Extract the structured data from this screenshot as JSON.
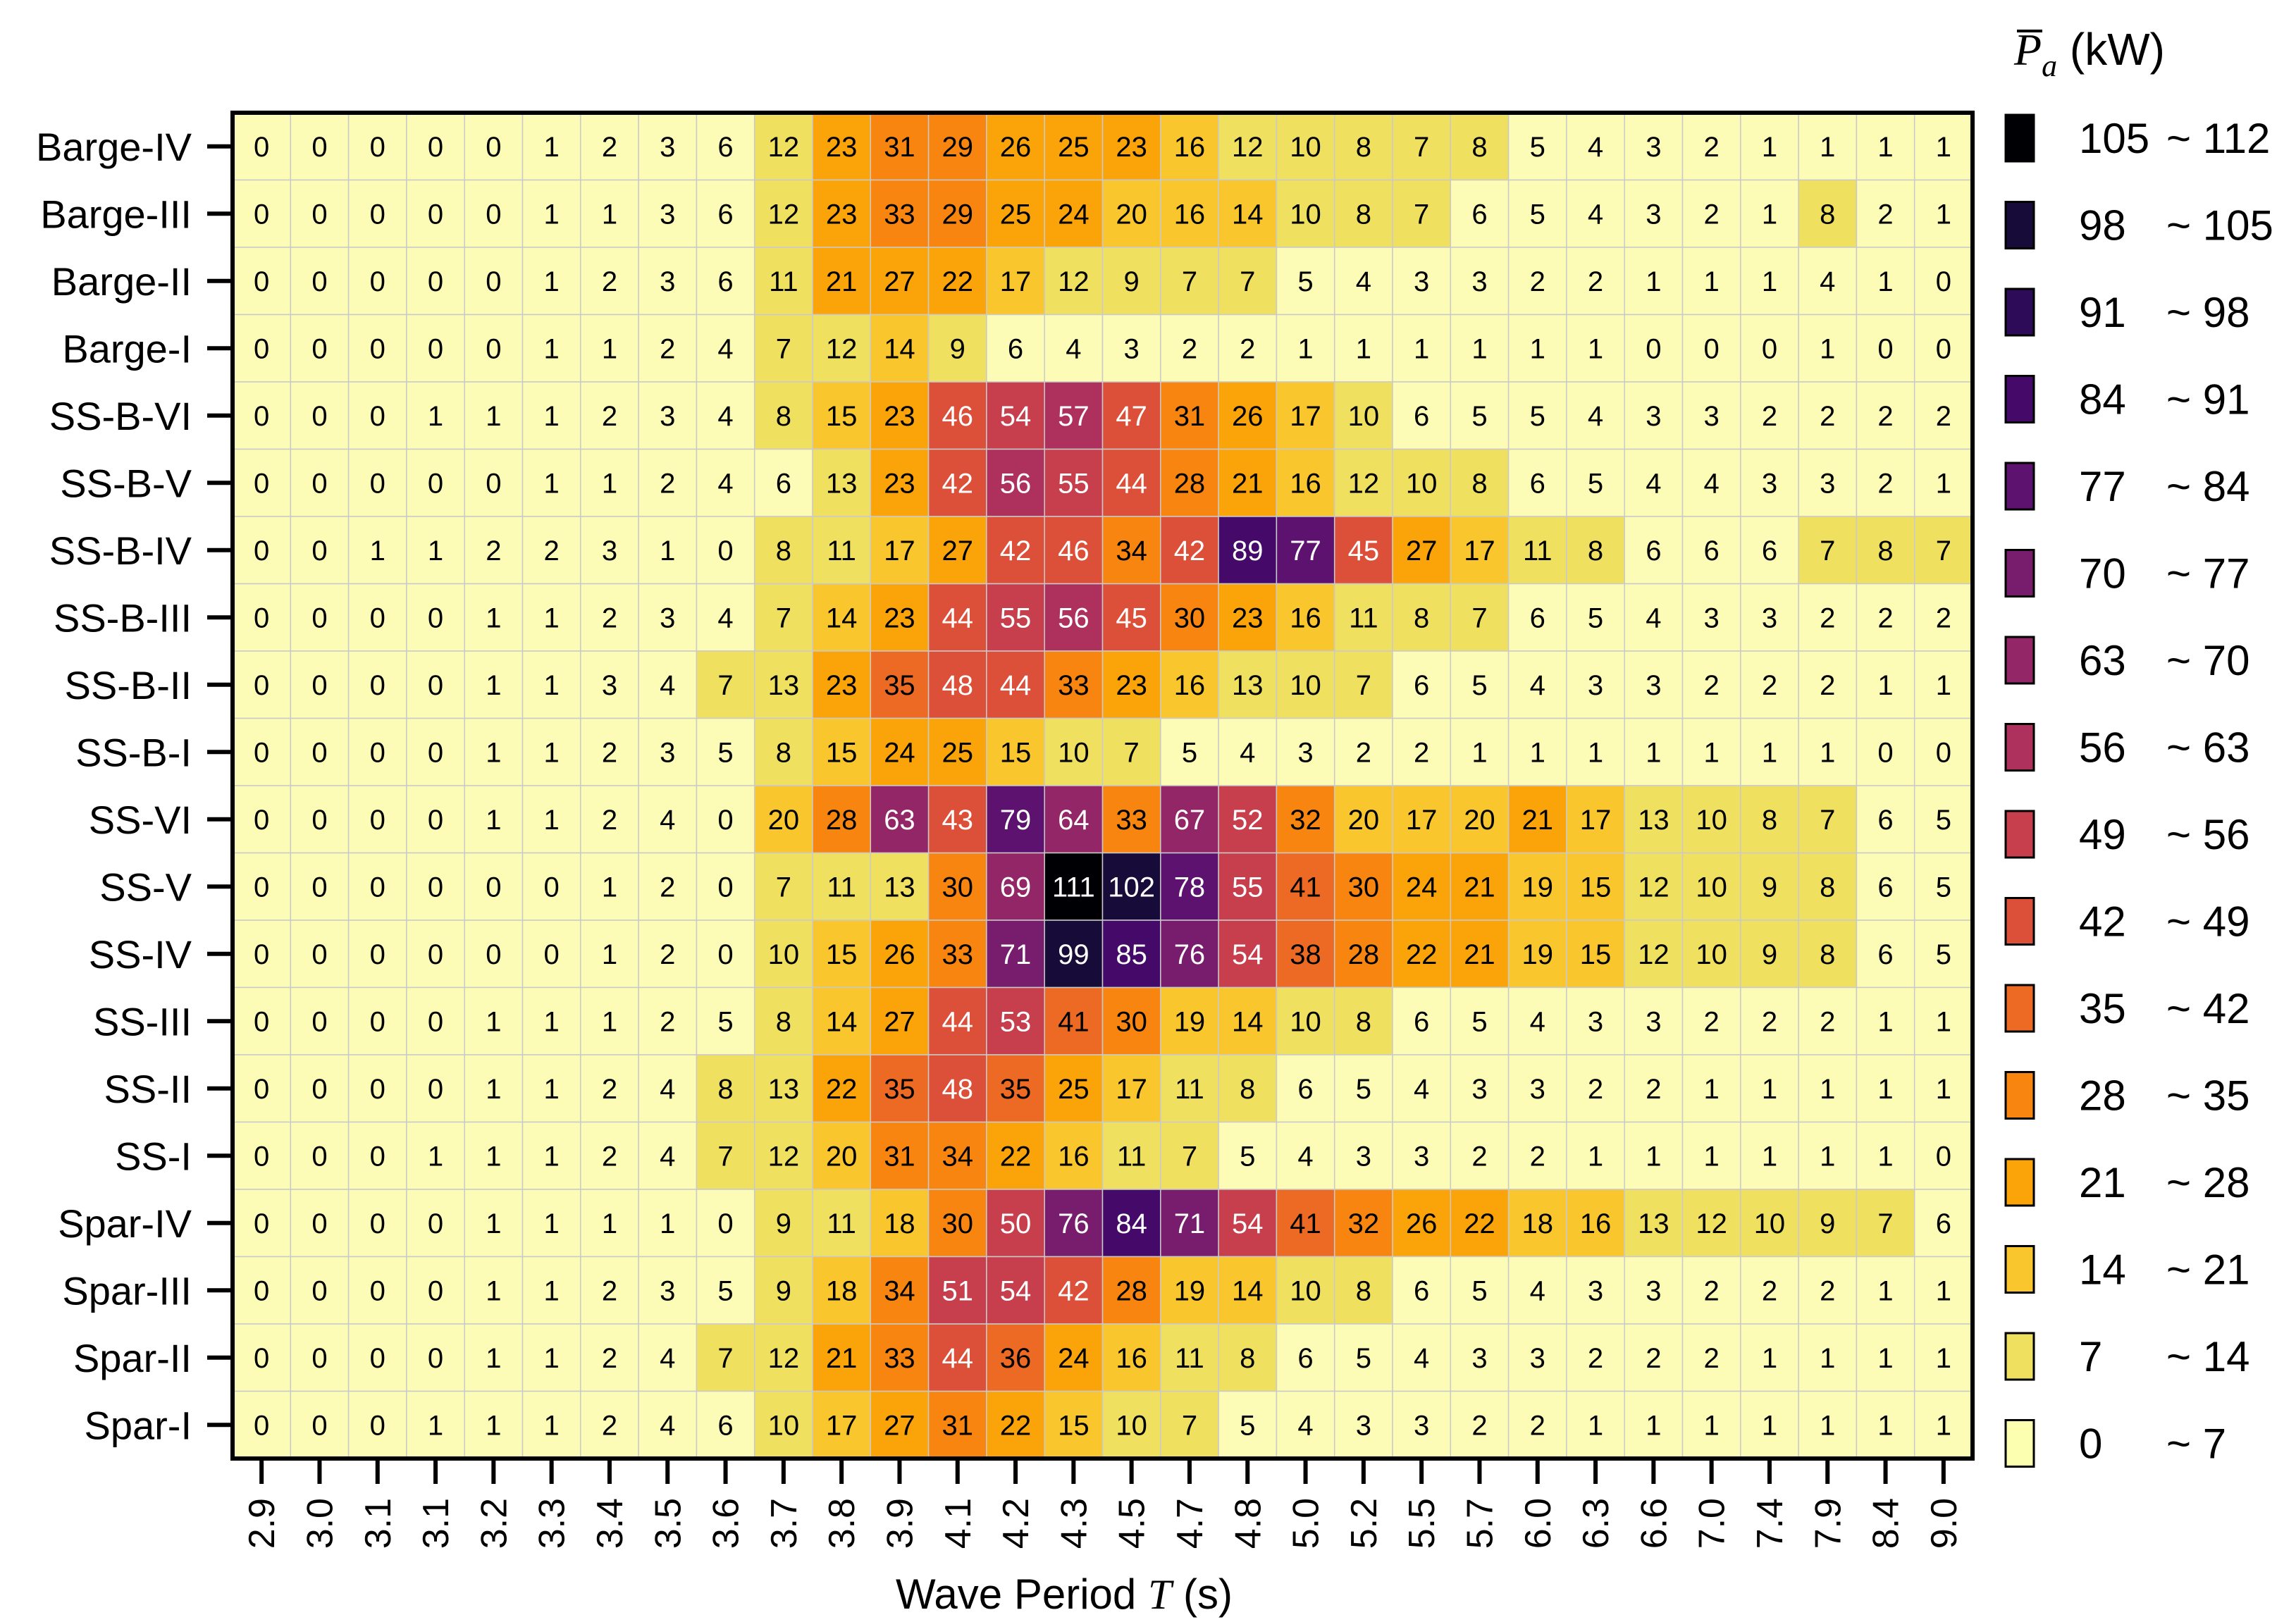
{
  "chart_data": {
    "type": "heatmap",
    "xlabel_parts": [
      "Wave Period ",
      "T",
      " (s)"
    ],
    "x": [
      "2.9",
      "3.0",
      "3.1",
      "3.1",
      "3.2",
      "3.3",
      "3.4",
      "3.5",
      "3.6",
      "3.7",
      "3.8",
      "3.9",
      "4.1",
      "4.2",
      "4.3",
      "4.5",
      "4.7",
      "4.8",
      "5.0",
      "5.2",
      "5.5",
      "5.7",
      "6.0",
      "6.3",
      "6.6",
      "7.0",
      "7.4",
      "7.9",
      "8.4",
      "9.0"
    ],
    "y": [
      "Barge-IV",
      "Barge-III",
      "Barge-II",
      "Barge-I",
      "SS-B-VI",
      "SS-B-V",
      "SS-B-IV",
      "SS-B-III",
      "SS-B-II",
      "SS-B-I",
      "SS-VI",
      "SS-V",
      "SS-IV",
      "SS-III",
      "SS-II",
      "SS-I",
      "Spar-IV",
      "Spar-III",
      "Spar-II",
      "Spar-I"
    ],
    "values": [
      [
        0,
        0,
        0,
        0,
        0,
        1,
        2,
        3,
        6,
        12,
        23,
        31,
        29,
        26,
        25,
        23,
        16,
        12,
        10,
        8,
        7,
        8,
        5,
        4,
        3,
        2,
        1,
        1,
        1,
        1
      ],
      [
        0,
        0,
        0,
        0,
        0,
        1,
        1,
        3,
        6,
        12,
        23,
        33,
        29,
        25,
        24,
        20,
        16,
        14,
        10,
        8,
        7,
        6,
        5,
        4,
        3,
        2,
        1,
        8,
        2,
        1
      ],
      [
        0,
        0,
        0,
        0,
        0,
        1,
        2,
        3,
        6,
        11,
        21,
        27,
        22,
        17,
        12,
        9,
        7,
        7,
        5,
        4,
        3,
        3,
        2,
        2,
        1,
        1,
        1,
        4,
        1,
        0
      ],
      [
        0,
        0,
        0,
        0,
        0,
        1,
        1,
        2,
        4,
        7,
        12,
        14,
        9,
        6,
        4,
        3,
        2,
        2,
        1,
        1,
        1,
        1,
        1,
        1,
        0,
        0,
        0,
        1,
        0,
        0
      ],
      [
        0,
        0,
        0,
        1,
        1,
        1,
        2,
        3,
        4,
        8,
        15,
        23,
        46,
        54,
        57,
        47,
        31,
        26,
        17,
        10,
        6,
        5,
        5,
        4,
        3,
        3,
        2,
        2,
        2,
        2
      ],
      [
        0,
        0,
        0,
        0,
        0,
        1,
        1,
        2,
        4,
        6,
        13,
        23,
        42,
        56,
        55,
        44,
        28,
        21,
        16,
        12,
        10,
        8,
        6,
        5,
        4,
        4,
        3,
        3,
        2,
        1
      ],
      [
        0,
        0,
        1,
        1,
        2,
        2,
        3,
        1,
        0,
        8,
        11,
        17,
        27,
        42,
        46,
        34,
        42,
        89,
        77,
        45,
        27,
        17,
        11,
        8,
        6,
        6,
        6,
        7,
        8,
        7
      ],
      [
        0,
        0,
        0,
        0,
        1,
        1,
        2,
        3,
        4,
        7,
        14,
        23,
        44,
        55,
        56,
        45,
        30,
        23,
        16,
        11,
        8,
        7,
        6,
        5,
        4,
        3,
        3,
        2,
        2,
        2
      ],
      [
        0,
        0,
        0,
        0,
        1,
        1,
        3,
        4,
        7,
        13,
        23,
        35,
        48,
        44,
        33,
        23,
        16,
        13,
        10,
        7,
        6,
        5,
        4,
        3,
        3,
        2,
        2,
        2,
        1,
        1
      ],
      [
        0,
        0,
        0,
        0,
        1,
        1,
        2,
        3,
        5,
        8,
        15,
        24,
        25,
        15,
        10,
        7,
        5,
        4,
        3,
        2,
        2,
        1,
        1,
        1,
        1,
        1,
        1,
        1,
        0,
        0
      ],
      [
        0,
        0,
        0,
        0,
        1,
        1,
        2,
        4,
        0,
        20,
        28,
        63,
        43,
        79,
        64,
        33,
        67,
        52,
        32,
        20,
        17,
        20,
        21,
        17,
        13,
        10,
        8,
        7,
        6,
        5
      ],
      [
        0,
        0,
        0,
        0,
        0,
        0,
        1,
        2,
        0,
        7,
        11,
        13,
        30,
        69,
        111,
        102,
        78,
        55,
        41,
        30,
        24,
        21,
        19,
        15,
        12,
        10,
        9,
        8,
        6,
        5
      ],
      [
        0,
        0,
        0,
        0,
        0,
        0,
        1,
        2,
        0,
        10,
        15,
        26,
        33,
        71,
        99,
        85,
        76,
        54,
        38,
        28,
        22,
        21,
        19,
        15,
        12,
        10,
        9,
        8,
        6,
        5
      ],
      [
        0,
        0,
        0,
        0,
        1,
        1,
        1,
        2,
        5,
        8,
        14,
        27,
        44,
        53,
        41,
        30,
        19,
        14,
        10,
        8,
        6,
        5,
        4,
        3,
        3,
        2,
        2,
        2,
        1,
        1
      ],
      [
        0,
        0,
        0,
        0,
        1,
        1,
        2,
        4,
        8,
        13,
        22,
        35,
        48,
        35,
        25,
        17,
        11,
        8,
        6,
        5,
        4,
        3,
        3,
        2,
        2,
        1,
        1,
        1,
        1,
        1
      ],
      [
        0,
        0,
        0,
        1,
        1,
        1,
        2,
        4,
        7,
        12,
        20,
        31,
        34,
        22,
        16,
        11,
        7,
        5,
        4,
        3,
        3,
        2,
        2,
        1,
        1,
        1,
        1,
        1,
        1,
        0
      ],
      [
        0,
        0,
        0,
        0,
        1,
        1,
        1,
        1,
        0,
        9,
        11,
        18,
        30,
        50,
        76,
        84,
        71,
        54,
        41,
        32,
        26,
        22,
        18,
        16,
        13,
        12,
        10,
        9,
        7,
        6
      ],
      [
        0,
        0,
        0,
        0,
        1,
        1,
        2,
        3,
        5,
        9,
        18,
        34,
        51,
        54,
        42,
        28,
        19,
        14,
        10,
        8,
        6,
        5,
        4,
        3,
        3,
        2,
        2,
        2,
        1,
        1
      ],
      [
        0,
        0,
        0,
        0,
        1,
        1,
        2,
        4,
        7,
        12,
        21,
        33,
        44,
        36,
        24,
        16,
        11,
        8,
        6,
        5,
        4,
        3,
        3,
        2,
        2,
        2,
        1,
        1,
        1,
        1
      ],
      [
        0,
        0,
        0,
        1,
        1,
        1,
        2,
        4,
        6,
        10,
        17,
        27,
        31,
        22,
        15,
        10,
        7,
        5,
        4,
        3,
        3,
        2,
        2,
        1,
        1,
        1,
        1,
        1,
        1,
        1
      ]
    ],
    "legend": {
      "title_symbol": "P",
      "title_subscript": "a",
      "title_unit": " (kW)",
      "bins": [
        {
          "low": "105",
          "high": "~ 112",
          "color": "#000004"
        },
        {
          "low": "98",
          "high": "~ 105",
          "color": "#160b39"
        },
        {
          "low": "91",
          "high": "~ 98",
          "color": "#2d0b59"
        },
        {
          "low": "84",
          "high": "~ 91",
          "color": "#450a69"
        },
        {
          "low": "77",
          "high": "~ 84",
          "color": "#5c126e"
        },
        {
          "low": "70",
          "high": "~ 77",
          "color": "#781c6d"
        },
        {
          "low": "63",
          "high": "~ 70",
          "color": "#932667"
        },
        {
          "low": "56",
          "high": "~ 63",
          "color": "#ae305c"
        },
        {
          "low": "49",
          "high": "~ 56",
          "color": "#c73e4c"
        },
        {
          "low": "42",
          "high": "~ 49",
          "color": "#dc5039"
        },
        {
          "low": "35",
          "high": "~ 42",
          "color": "#ec6a24"
        },
        {
          "low": "28",
          "high": "~ 35",
          "color": "#f7850f"
        },
        {
          "low": "21",
          "high": "~ 28",
          "color": "#fba40a"
        },
        {
          "low": "14",
          "high": "~ 21",
          "color": "#f9c62e"
        },
        {
          "low": "7",
          "high": "~ 14",
          "color": "#f0e060"
        },
        {
          "low": "0",
          "high": "~ 7",
          "color": "#fcfeb0"
        }
      ]
    },
    "cell_colors": {
      "light": "#fdfcb6",
      "text_dark": "#000000",
      "text_light": "#ffffff"
    }
  }
}
